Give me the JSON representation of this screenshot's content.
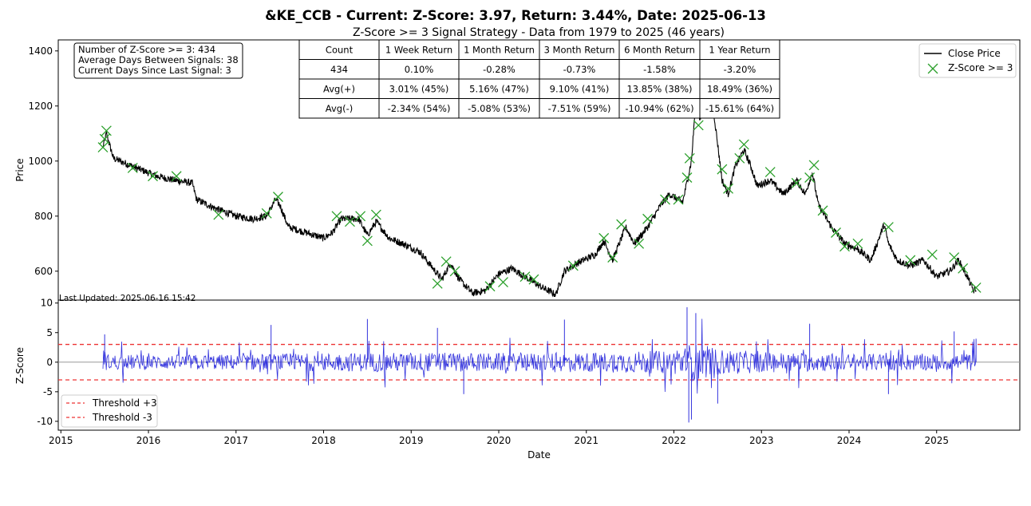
{
  "title": "&KE_CCB - Current: Z-Score: 3.97, Return: 3.44%, Date: 2025-06-13",
  "subtitle": "Z-Score >= 3 Signal Strategy - Data from 1979 to 2025 (46 years)",
  "stats_box": [
    "Number of Z-Score >= 3: 434",
    "Average Days Between Signals: 38",
    "Current Days Since Last Signal: 3"
  ],
  "last_updated": "Last Updated: 2025-06-16 15:42",
  "colors": {
    "price": "#000000",
    "signal": "#2ca02c",
    "zscore": "#3333dd",
    "threshold": "#ee3333",
    "zero": "#999999"
  },
  "returns_table": {
    "headers": [
      "Count",
      "1 Week Return",
      "1 Month Return",
      "3 Month Return",
      "6 Month Return",
      "1 Year Return"
    ],
    "rows": [
      [
        "434",
        "0.10%",
        "-0.28%",
        "-0.73%",
        "-1.58%",
        "-3.20%"
      ],
      [
        "Avg(+)",
        "3.01% (45%)",
        "5.16% (47%)",
        "9.10% (41%)",
        "13.85% (38%)",
        "18.49% (36%)"
      ],
      [
        "Avg(-)",
        "-2.34% (54%)",
        "-5.08% (53%)",
        "-7.51% (59%)",
        "-10.94% (62%)",
        "-15.61% (64%)"
      ]
    ]
  },
  "legend_top": [
    "Close Price",
    "Z-Score >= 3"
  ],
  "legend_bottom": [
    "Threshold +3",
    "Threshold -3"
  ],
  "chart_data": [
    {
      "type": "line",
      "panel": "price",
      "ylabel": "Price",
      "xlabel": "",
      "ylim": [
        495,
        1440
      ],
      "yticks": [
        600,
        800,
        1000,
        1200,
        1400
      ],
      "xlim": [
        2014.97,
        2025.95
      ],
      "series": [
        {
          "name": "Close Price",
          "points": [
            [
              2015.48,
              1050
            ],
            [
              2015.52,
              1100
            ],
            [
              2015.6,
              1010
            ],
            [
              2015.75,
              990
            ],
            [
              2015.9,
              970
            ],
            [
              2016.1,
              945
            ],
            [
              2016.3,
              930
            ],
            [
              2016.5,
              920
            ],
            [
              2016.55,
              860
            ],
            [
              2016.75,
              830
            ],
            [
              2017.0,
              800
            ],
            [
              2017.2,
              790
            ],
            [
              2017.35,
              800
            ],
            [
              2017.45,
              860
            ],
            [
              2017.5,
              840
            ],
            [
              2017.6,
              760
            ],
            [
              2017.8,
              740
            ],
            [
              2018.0,
              720
            ],
            [
              2018.1,
              740
            ],
            [
              2018.2,
              790
            ],
            [
              2018.4,
              790
            ],
            [
              2018.5,
              730
            ],
            [
              2018.6,
              780
            ],
            [
              2018.75,
              720
            ],
            [
              2018.9,
              700
            ],
            [
              2019.1,
              670
            ],
            [
              2019.25,
              610
            ],
            [
              2019.35,
              570
            ],
            [
              2019.45,
              630
            ],
            [
              2019.55,
              570
            ],
            [
              2019.7,
              520
            ],
            [
              2019.85,
              530
            ],
            [
              2020.0,
              590
            ],
            [
              2020.15,
              610
            ],
            [
              2020.3,
              580
            ],
            [
              2020.5,
              540
            ],
            [
              2020.65,
              515
            ],
            [
              2020.75,
              600
            ],
            [
              2020.9,
              630
            ],
            [
              2021.1,
              660
            ],
            [
              2021.2,
              710
            ],
            [
              2021.3,
              640
            ],
            [
              2021.45,
              760
            ],
            [
              2021.55,
              700
            ],
            [
              2021.7,
              760
            ],
            [
              2021.85,
              840
            ],
            [
              2021.95,
              880
            ],
            [
              2022.1,
              850
            ],
            [
              2022.2,
              1000
            ],
            [
              2022.25,
              1220
            ],
            [
              2022.3,
              1150
            ],
            [
              2022.38,
              1340
            ],
            [
              2022.45,
              1190
            ],
            [
              2022.55,
              930
            ],
            [
              2022.62,
              880
            ],
            [
              2022.7,
              980
            ],
            [
              2022.8,
              1040
            ],
            [
              2022.88,
              980
            ],
            [
              2022.95,
              910
            ],
            [
              2023.1,
              930
            ],
            [
              2023.25,
              880
            ],
            [
              2023.4,
              930
            ],
            [
              2023.5,
              880
            ],
            [
              2023.58,
              960
            ],
            [
              2023.65,
              840
            ],
            [
              2023.8,
              760
            ],
            [
              2023.95,
              700
            ],
            [
              2024.1,
              680
            ],
            [
              2024.25,
              640
            ],
            [
              2024.4,
              770
            ],
            [
              2024.45,
              700
            ],
            [
              2024.55,
              640
            ],
            [
              2024.7,
              620
            ],
            [
              2024.85,
              640
            ],
            [
              2025.0,
              580
            ],
            [
              2025.15,
              600
            ],
            [
              2025.25,
              640
            ],
            [
              2025.35,
              580
            ],
            [
              2025.42,
              530
            ],
            [
              2025.45,
              530
            ]
          ]
        }
      ],
      "signals": [
        [
          2015.48,
          1050
        ],
        [
          2015.5,
          1080
        ],
        [
          2015.52,
          1110
        ],
        [
          2015.82,
          975
        ],
        [
          2016.05,
          945
        ],
        [
          2016.32,
          945
        ],
        [
          2016.8,
          805
        ],
        [
          2017.35,
          810
        ],
        [
          2017.48,
          870
        ],
        [
          2018.15,
          800
        ],
        [
          2018.3,
          780
        ],
        [
          2018.42,
          800
        ],
        [
          2018.5,
          710
        ],
        [
          2018.6,
          805
        ],
        [
          2019.3,
          555
        ],
        [
          2019.4,
          635
        ],
        [
          2019.5,
          600
        ],
        [
          2019.9,
          545
        ],
        [
          2020.05,
          560
        ],
        [
          2020.3,
          580
        ],
        [
          2020.4,
          570
        ],
        [
          2020.85,
          620
        ],
        [
          2021.2,
          720
        ],
        [
          2021.3,
          650
        ],
        [
          2021.4,
          770
        ],
        [
          2021.6,
          700
        ],
        [
          2021.7,
          790
        ],
        [
          2021.9,
          860
        ],
        [
          2022.05,
          860
        ],
        [
          2022.15,
          940
        ],
        [
          2022.18,
          1010
        ],
        [
          2022.22,
          1240
        ],
        [
          2022.28,
          1130
        ],
        [
          2022.32,
          1200
        ],
        [
          2022.38,
          1380
        ],
        [
          2022.42,
          1200
        ],
        [
          2022.55,
          970
        ],
        [
          2022.62,
          900
        ],
        [
          2022.75,
          1010
        ],
        [
          2022.8,
          1060
        ],
        [
          2023.1,
          960
        ],
        [
          2023.4,
          920
        ],
        [
          2023.55,
          940
        ],
        [
          2023.6,
          985
        ],
        [
          2023.7,
          820
        ],
        [
          2023.85,
          740
        ],
        [
          2023.95,
          690
        ],
        [
          2024.1,
          700
        ],
        [
          2024.45,
          760
        ],
        [
          2024.7,
          640
        ],
        [
          2024.95,
          660
        ],
        [
          2025.2,
          650
        ],
        [
          2025.3,
          610
        ],
        [
          2025.45,
          540
        ]
      ]
    },
    {
      "type": "line",
      "panel": "zscore",
      "ylabel": "Z-Score",
      "xlabel": "Date",
      "ylim": [
        -11.5,
        10.5
      ],
      "yticks": [
        -10,
        -5,
        0,
        5,
        10
      ],
      "xticks": [
        "2015",
        "2016",
        "2017",
        "2018",
        "2019",
        "2020",
        "2021",
        "2022",
        "2023",
        "2024",
        "2025"
      ],
      "xtick_values": [
        2015,
        2016,
        2017,
        2018,
        2019,
        2020,
        2021,
        2022,
        2023,
        2024,
        2025
      ],
      "xlim": [
        2014.97,
        2025.95
      ],
      "thresholds": [
        3,
        -3
      ],
      "series_range": [
        2015.48,
        2025.45
      ],
      "amplitude_profile": [
        [
          2015.48,
          2.5
        ],
        [
          2016.0,
          2.2
        ],
        [
          2017.0,
          2.4
        ],
        [
          2018.0,
          2.8
        ],
        [
          2019.0,
          3.0
        ],
        [
          2020.0,
          2.8
        ],
        [
          2021.0,
          3.0
        ],
        [
          2022.0,
          3.6
        ],
        [
          2022.2,
          6.0
        ],
        [
          2022.5,
          4.0
        ],
        [
          2023.0,
          3.2
        ],
        [
          2024.0,
          2.6
        ],
        [
          2025.0,
          2.6
        ],
        [
          2025.45,
          2.6
        ]
      ],
      "extremes": [
        [
          2015.5,
          4.7
        ],
        [
          2017.4,
          6.3
        ],
        [
          2018.5,
          7.3
        ],
        [
          2019.3,
          5.8
        ],
        [
          2019.6,
          -5.4
        ],
        [
          2020.75,
          7.2
        ],
        [
          2022.15,
          9.3
        ],
        [
          2022.17,
          -10.2
        ],
        [
          2022.2,
          -9.7
        ],
        [
          2022.25,
          8.3
        ],
        [
          2022.5,
          -7.0
        ],
        [
          2023.55,
          6.5
        ],
        [
          2025.2,
          5.2
        ],
        [
          2024.45,
          -5.4
        ],
        [
          2025.45,
          3.97
        ]
      ]
    }
  ]
}
